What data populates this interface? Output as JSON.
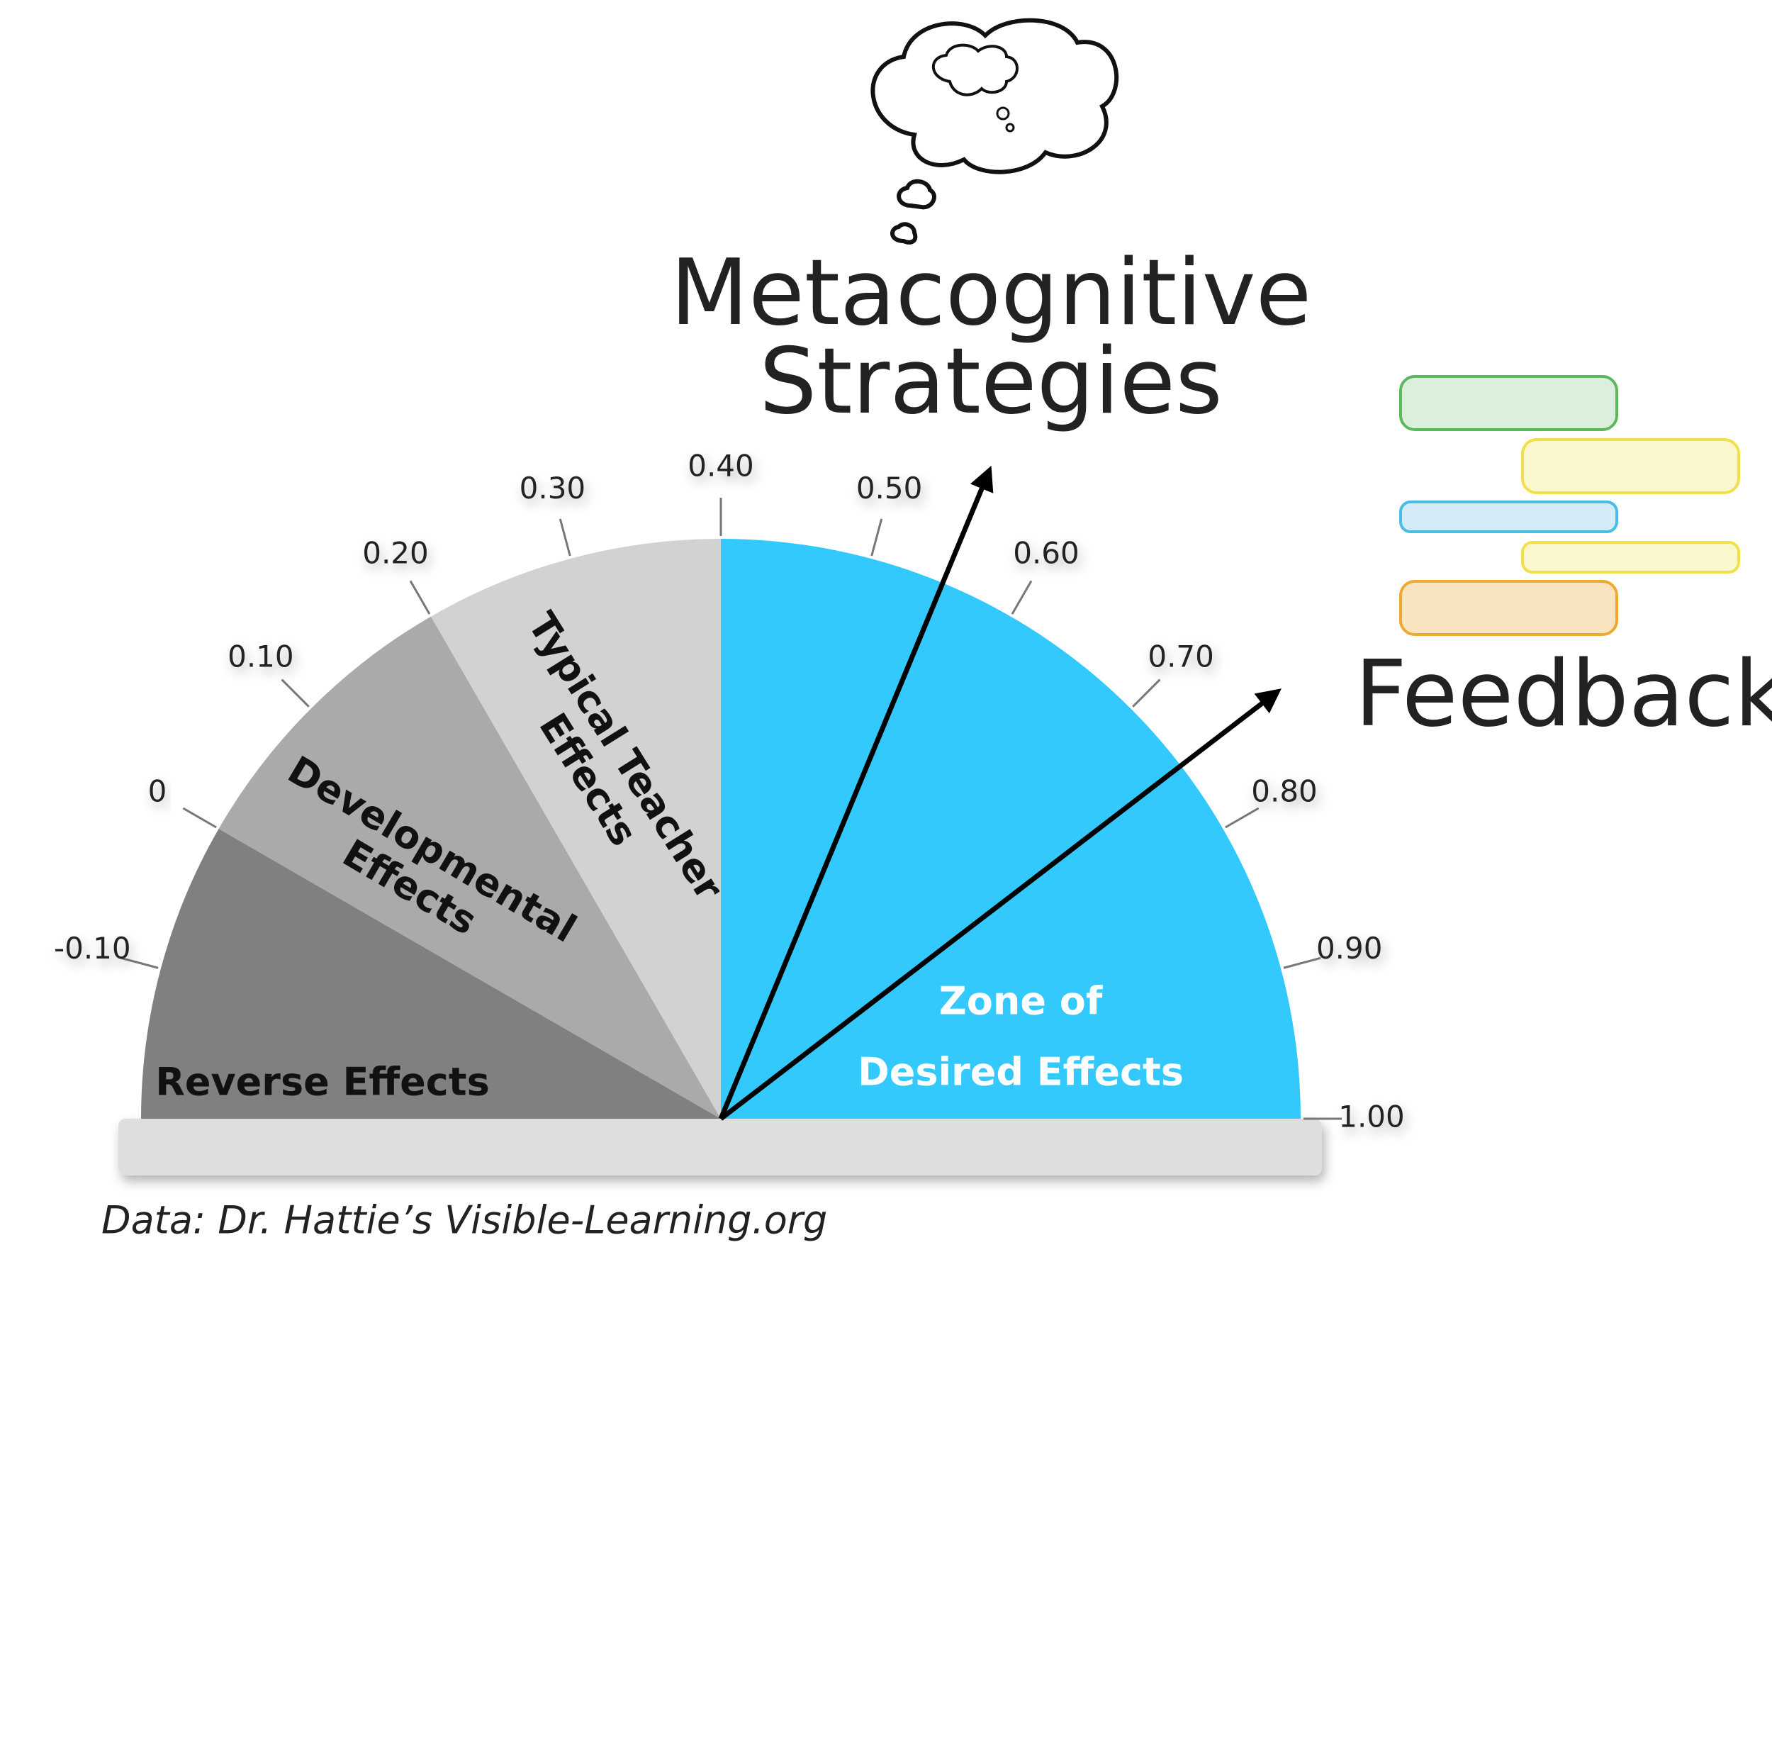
{
  "chart_data": {
    "type": "gauge",
    "xlim": [
      -0.2,
      1.0
    ],
    "xticks": [
      {
        "value": -0.1,
        "label": "-0.10"
      },
      0,
      {
        "value": 0.1,
        "label": "0.10"
      },
      {
        "value": 0.2,
        "label": "0.20"
      },
      {
        "value": 0.3,
        "label": "0.30"
      },
      {
        "value": 0.4,
        "label": "0.40"
      },
      {
        "value": 0.5,
        "label": "0.50"
      },
      {
        "value": 0.6,
        "label": "0.60"
      },
      {
        "value": 0.7,
        "label": "0.70"
      },
      {
        "value": 0.8,
        "label": "0.80"
      },
      {
        "value": 0.9,
        "label": "0.90"
      },
      {
        "value": 1.0,
        "label": "1.00"
      }
    ],
    "zones": [
      {
        "name_lines": [
          "Reverse Effects"
        ],
        "start": -0.2,
        "end": 0,
        "color": "#808080",
        "text_color": "#111111"
      },
      {
        "name_lines": [
          "Developmental",
          "Effects"
        ],
        "start": 0,
        "end": 0.2,
        "color": "#aaaaaa",
        "text_color": "#111111"
      },
      {
        "name_lines": [
          "Typical Teacher",
          "Effects"
        ],
        "start": 0.2,
        "end": 0.4,
        "color": "#d1d2d4",
        "text_color": "#111111"
      },
      {
        "name_lines": [
          "Zone of",
          "Desired Effects"
        ],
        "start": 0.4,
        "end": 1.0,
        "color": "#33c9fc",
        "text_color": "#ffffff"
      }
    ],
    "markers": [
      {
        "label_lines": [
          "Metacognitive",
          "Strategies"
        ],
        "value": 0.55
      },
      {
        "label_lines": [
          "Feedback"
        ],
        "value": 0.75
      }
    ],
    "source": "Data: Dr. Hattie’s Visible-Learning.org"
  }
}
